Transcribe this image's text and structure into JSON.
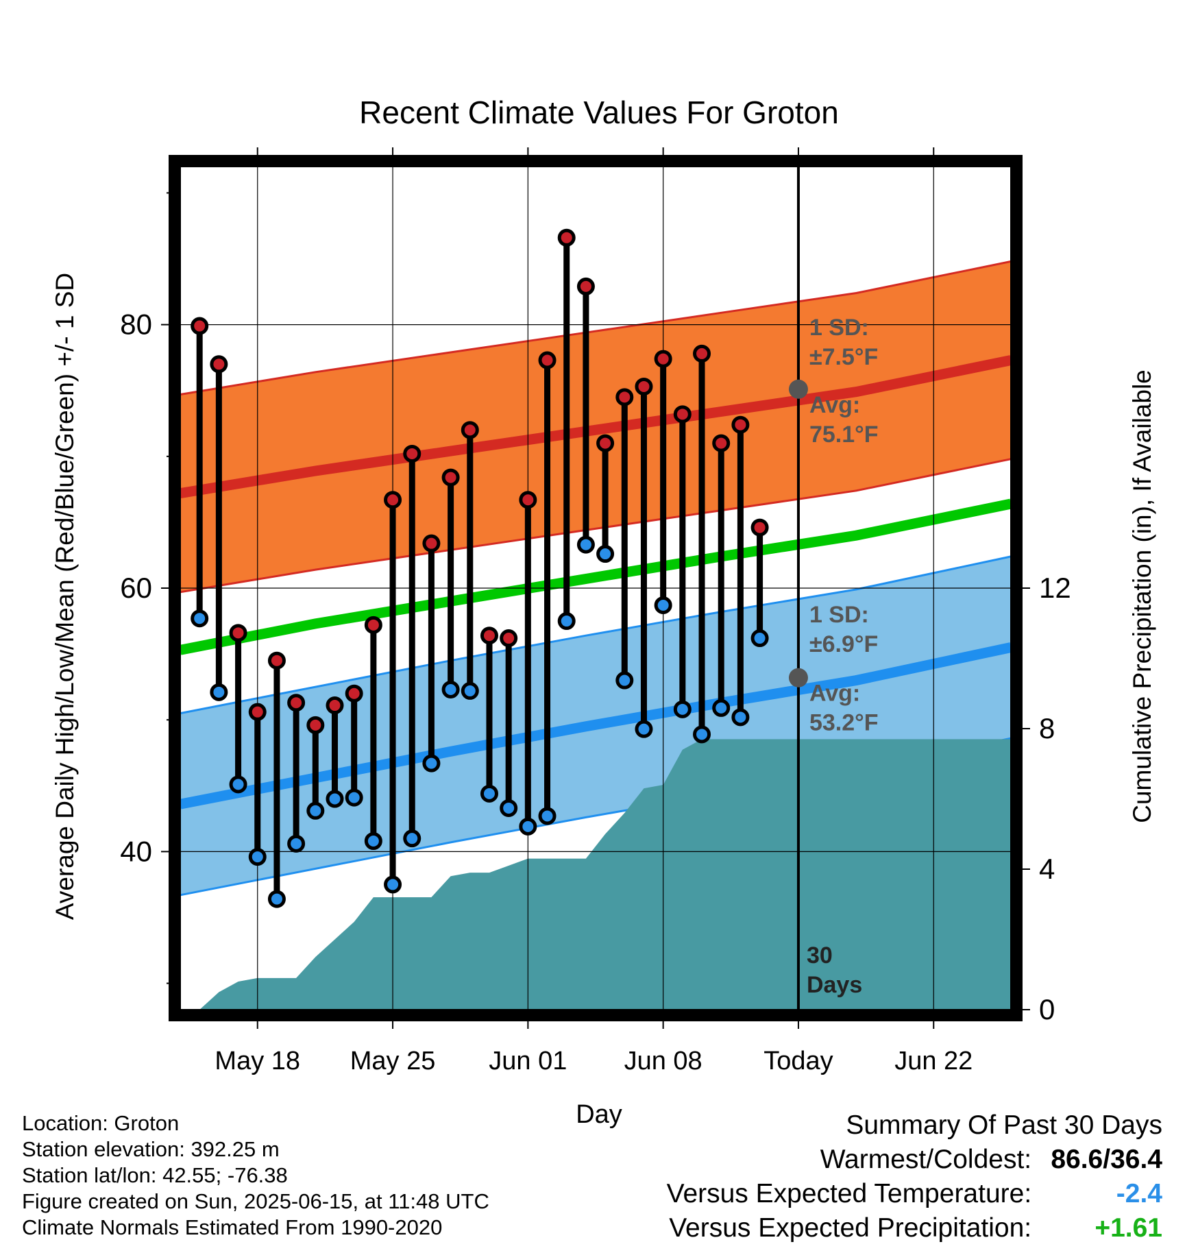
{
  "chart_data": {
    "type": "line",
    "title": "Recent Climate Values For Groton",
    "xlabel": "Day",
    "ylabel": "Average Daily High/Low/Mean (Red/Blue/Green) +/- 1 SD",
    "y2label": "Cumulative Precipitation (in), If Available",
    "xlim": [
      "2025-05-14",
      "2025-06-26"
    ],
    "ylim": [
      28,
      92
    ],
    "y2lim": [
      0,
      24
    ],
    "x_ticks": [
      {
        "date": "2025-05-18",
        "label": "May 18"
      },
      {
        "date": "2025-05-25",
        "label": "May 25"
      },
      {
        "date": "2025-06-01",
        "label": "Jun 01"
      },
      {
        "date": "2025-06-08",
        "label": "Jun 08"
      },
      {
        "date": "2025-06-15",
        "label": "Today"
      },
      {
        "date": "2025-06-22",
        "label": "Jun 22"
      }
    ],
    "y_ticks": [
      40,
      60,
      80
    ],
    "y2_ticks": [
      0,
      4,
      8,
      12
    ],
    "grid": true,
    "today": "2025-06-15",
    "period_label": [
      "30",
      "Days"
    ],
    "normal_high": {
      "mean": {
        "x": [
          "2025-05-14",
          "2025-05-21",
          "2025-05-28",
          "2025-06-04",
          "2025-06-11",
          "2025-06-18",
          "2025-06-26"
        ],
        "y": [
          67.2,
          68.9,
          70.4,
          71.9,
          73.4,
          74.9,
          77.3
        ]
      },
      "sd": 7.5
    },
    "normal_low": {
      "mean": {
        "x": [
          "2025-05-14",
          "2025-05-21",
          "2025-05-28",
          "2025-06-04",
          "2025-06-11",
          "2025-06-18",
          "2025-06-26"
        ],
        "y": [
          43.6,
          45.6,
          47.6,
          49.5,
          51.3,
          53.0,
          55.5
        ]
      },
      "sd": 6.9
    },
    "normal_mean": {
      "x": [
        "2025-05-14",
        "2025-05-21",
        "2025-05-28",
        "2025-06-04",
        "2025-06-11",
        "2025-06-18",
        "2025-06-26"
      ],
      "y": [
        55.3,
        57.3,
        59.0,
        60.7,
        62.4,
        64.0,
        66.4
      ]
    },
    "band_labels": {
      "high": {
        "sd": "1 SD:",
        "sd_val": "±7.5°F",
        "avg": "Avg:",
        "avg_val": "75.1°F",
        "marker": 75.1
      },
      "low": {
        "sd": "1 SD:",
        "sd_val": "±6.9°F",
        "avg": "Avg:",
        "avg_val": "53.2°F",
        "marker": 53.2
      }
    },
    "observed": {
      "dates": [
        "2025-05-15",
        "2025-05-16",
        "2025-05-17",
        "2025-05-18",
        "2025-05-19",
        "2025-05-20",
        "2025-05-21",
        "2025-05-22",
        "2025-05-23",
        "2025-05-24",
        "2025-05-25",
        "2025-05-26",
        "2025-05-27",
        "2025-05-28",
        "2025-05-29",
        "2025-05-30",
        "2025-05-31",
        "2025-06-01",
        "2025-06-02",
        "2025-06-03",
        "2025-06-04",
        "2025-06-05",
        "2025-06-06",
        "2025-06-07",
        "2025-06-08",
        "2025-06-09",
        "2025-06-10",
        "2025-06-11",
        "2025-06-12",
        "2025-06-13",
        "2025-06-14"
      ],
      "high": [
        79.9,
        77.0,
        56.6,
        50.6,
        54.5,
        51.3,
        49.6,
        51.1,
        52.0,
        57.2,
        66.7,
        70.2,
        63.4,
        68.4,
        72.0,
        56.4,
        56.2,
        66.7,
        77.3,
        86.6,
        82.9,
        71.0,
        74.5,
        75.3,
        77.4,
        73.2,
        77.8,
        71.0,
        72.4,
        64.6,
        null
      ],
      "low": [
        57.7,
        52.1,
        45.1,
        39.6,
        36.4,
        40.6,
        43.1,
        44.0,
        44.1,
        40.8,
        37.5,
        41.0,
        46.7,
        52.3,
        52.2,
        44.4,
        43.3,
        41.9,
        42.7,
        57.5,
        63.3,
        62.6,
        53.0,
        49.3,
        58.7,
        50.8,
        48.9,
        50.9,
        50.2,
        56.2,
        null
      ]
    },
    "precip": {
      "dates": [
        "2025-05-14",
        "2025-05-15",
        "2025-05-16",
        "2025-05-17",
        "2025-05-18",
        "2025-05-19",
        "2025-05-20",
        "2025-05-21",
        "2025-05-22",
        "2025-05-23",
        "2025-05-24",
        "2025-05-25",
        "2025-05-26",
        "2025-05-27",
        "2025-05-28",
        "2025-05-29",
        "2025-05-30",
        "2025-05-31",
        "2025-06-01",
        "2025-06-02",
        "2025-06-03",
        "2025-06-04",
        "2025-06-05",
        "2025-06-06",
        "2025-06-07",
        "2025-06-08",
        "2025-06-09",
        "2025-06-10",
        "2025-06-11",
        "2025-06-12",
        "2025-06-13",
        "2025-06-14",
        "2025-06-26"
      ],
      "values": [
        0.0,
        0.0,
        0.5,
        0.8,
        0.9,
        0.9,
        0.9,
        1.5,
        2.0,
        2.5,
        3.2,
        3.2,
        3.2,
        3.2,
        3.8,
        3.9,
        3.9,
        4.1,
        4.3,
        4.3,
        4.3,
        4.3,
        5.0,
        5.6,
        6.3,
        6.4,
        7.4,
        7.7,
        7.7,
        7.7,
        7.7,
        7.7,
        7.7
      ]
    }
  },
  "footer": {
    "location": "Location: Groton",
    "elevation": "Station elevation: 392.25 m",
    "latlon": "Station lat/lon: 42.55; -76.38",
    "created": "Figure created on Sun, 2025-06-15, at 11:48 UTC",
    "normals": "Climate Normals Estimated From 1990-2020"
  },
  "summary": {
    "title": "Summary Of Past 30 Days",
    "warmest_label": "Warmest/Coldest:",
    "warmest_value": "86.6/36.4",
    "temp_label": "Versus Expected Temperature:",
    "temp_value": "-2.4",
    "precip_label": "Versus Expected Precipitation:",
    "precip_value": "+1.61",
    "temp_color": "#2a8fe8",
    "precip_color": "#17b117"
  },
  "colors": {
    "high_band": "#f47a30",
    "high_line": "#d42a22",
    "low_band": "#82c1e8",
    "low_line": "#1f8fef",
    "mean_line": "#00c800",
    "precip_fill": "#489aa2",
    "high_dot": "#c8202a",
    "low_dot": "#2a8fe8",
    "label_gray": "#555555"
  }
}
